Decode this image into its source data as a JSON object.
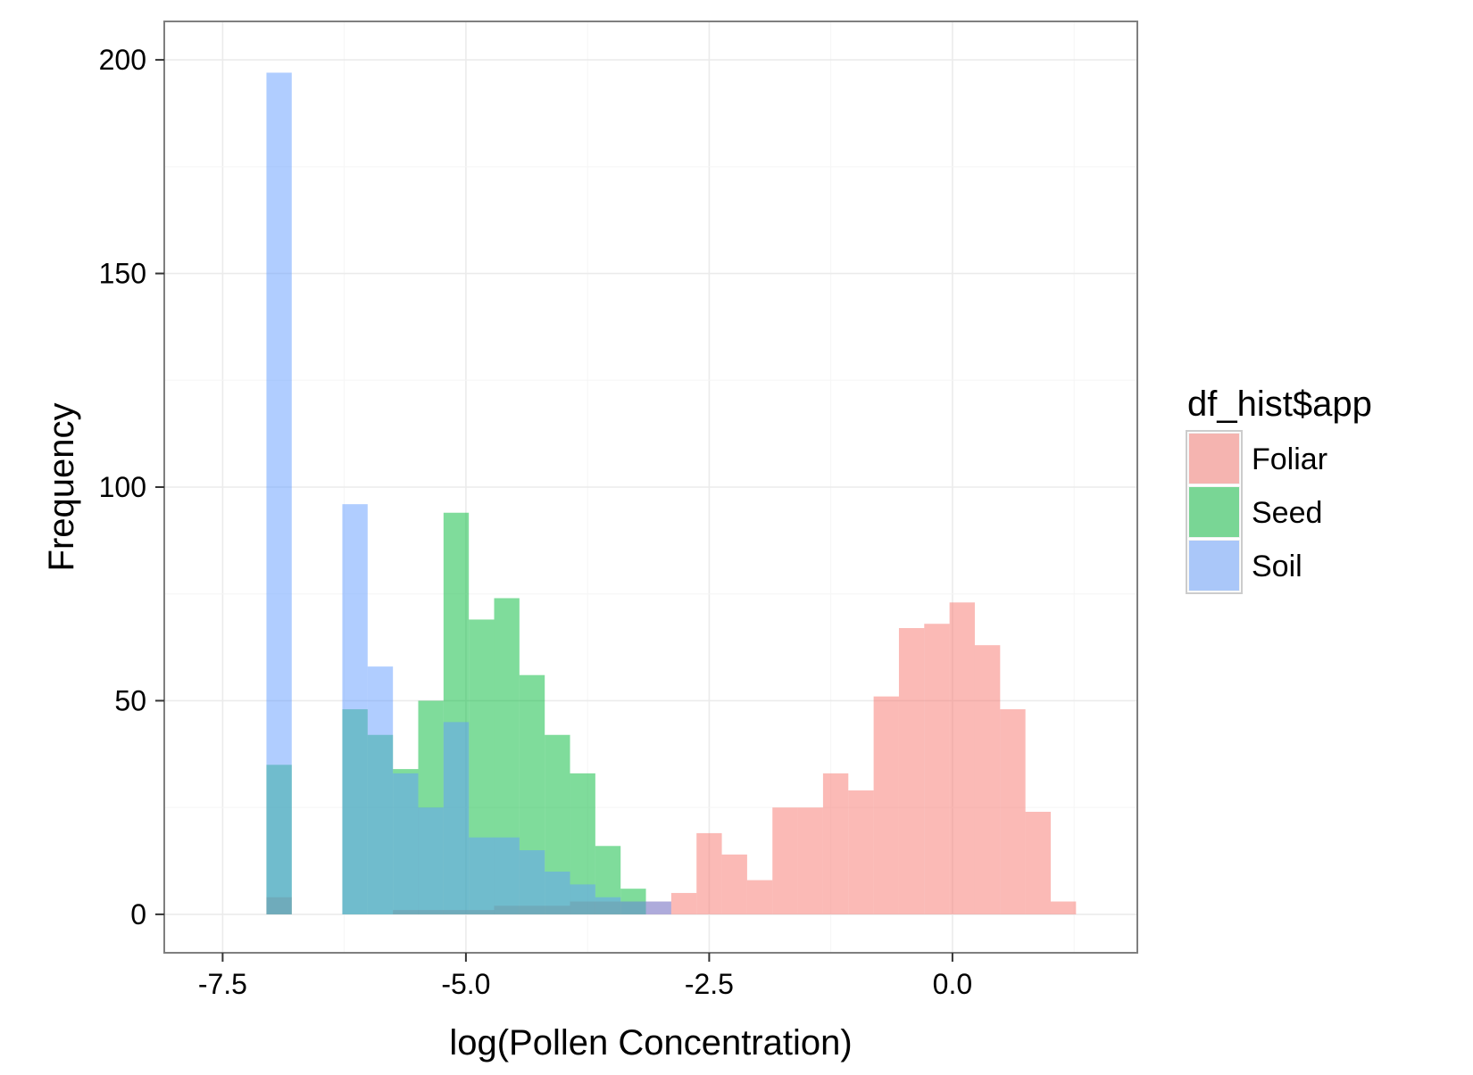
{
  "chart_data": {
    "type": "histogram",
    "title": "",
    "xlabel": "log(Pollen Concentration)",
    "ylabel": "Frequency",
    "xlim": [
      -8.1,
      1.9
    ],
    "ylim": [
      -9,
      209
    ],
    "x_ticks": [
      -7.5,
      -5.0,
      -2.5,
      0.0
    ],
    "x_tick_labels": [
      "-7.5",
      "-5.0",
      "-2.5",
      "0.0"
    ],
    "y_ticks": [
      0,
      50,
      100,
      150,
      200
    ],
    "y_tick_labels": [
      "0",
      "50",
      "100",
      "150",
      "200"
    ],
    "grid": true,
    "bin_width": 0.26,
    "bin_start": -7.05,
    "legend": {
      "title": "df_hist$app",
      "position": "right"
    },
    "series": [
      {
        "name": "Foliar",
        "color": "#F8766D",
        "counts": [
          4,
          0,
          0,
          0,
          0,
          1,
          1,
          1,
          1,
          2,
          2,
          2,
          3,
          3,
          3,
          3,
          5,
          19,
          14,
          8,
          25,
          25,
          33,
          29,
          51,
          67,
          68,
          73,
          63,
          48,
          24,
          3
        ]
      },
      {
        "name": "Seed",
        "color": "#00BA38",
        "counts": [
          35,
          0,
          0,
          48,
          42,
          34,
          50,
          94,
          69,
          74,
          56,
          42,
          33,
          16,
          6,
          0,
          0,
          0,
          0,
          0,
          0,
          0,
          0,
          0,
          0,
          0,
          0,
          0,
          0,
          0,
          0,
          0
        ]
      },
      {
        "name": "Soil",
        "color": "#619CFF",
        "counts": [
          197,
          0,
          0,
          96,
          58,
          33,
          25,
          45,
          18,
          18,
          15,
          10,
          7,
          4,
          3,
          3,
          0,
          0,
          0,
          0,
          0,
          0,
          0,
          0,
          0,
          0,
          0,
          0,
          0,
          0,
          0,
          0
        ]
      }
    ]
  }
}
